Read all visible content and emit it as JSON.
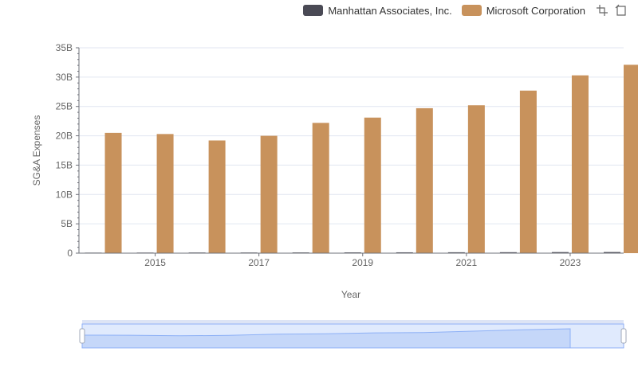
{
  "legend": {
    "series_a": "Manhattan Associates, Inc.",
    "series_b": "Microsoft Corporation"
  },
  "icons": [
    "zoom-select-icon",
    "zoom-reset-icon"
  ],
  "colors": {
    "series_a": "#4a4a55",
    "series_b": "#c8925c",
    "axis": "#6e7079",
    "grid": "#e0e6f1",
    "zoom_fill": "#e8efff",
    "zoom_line": "#8fb0f7"
  },
  "chart_data": {
    "type": "bar",
    "title": "",
    "xlabel": "Year",
    "ylabel": "SG&A Expenses",
    "categories": [
      "2014",
      "2015",
      "2016",
      "2017",
      "2018",
      "2019",
      "2020",
      "2021",
      "2022",
      "2023",
      "2024"
    ],
    "x_tick_labels": [
      "2015",
      "2017",
      "2019",
      "2021",
      "2023"
    ],
    "y_tick_labels": [
      "0",
      "5B",
      "10B",
      "15B",
      "20B",
      "25B",
      "30B",
      "35B"
    ],
    "ylim": [
      0,
      35
    ],
    "y_unit": "B",
    "grid": true,
    "legend_position": "top-right",
    "series": [
      {
        "name": "Manhattan Associates, Inc.",
        "values": [
          0.09,
          0.1,
          0.11,
          0.11,
          0.12,
          0.13,
          0.14,
          0.15,
          0.16,
          0.18,
          0.19
        ]
      },
      {
        "name": "Microsoft Corporation",
        "values": [
          20.5,
          20.3,
          19.2,
          20.0,
          22.2,
          23.1,
          24.7,
          25.2,
          27.7,
          30.3,
          32.1
        ]
      }
    ]
  }
}
